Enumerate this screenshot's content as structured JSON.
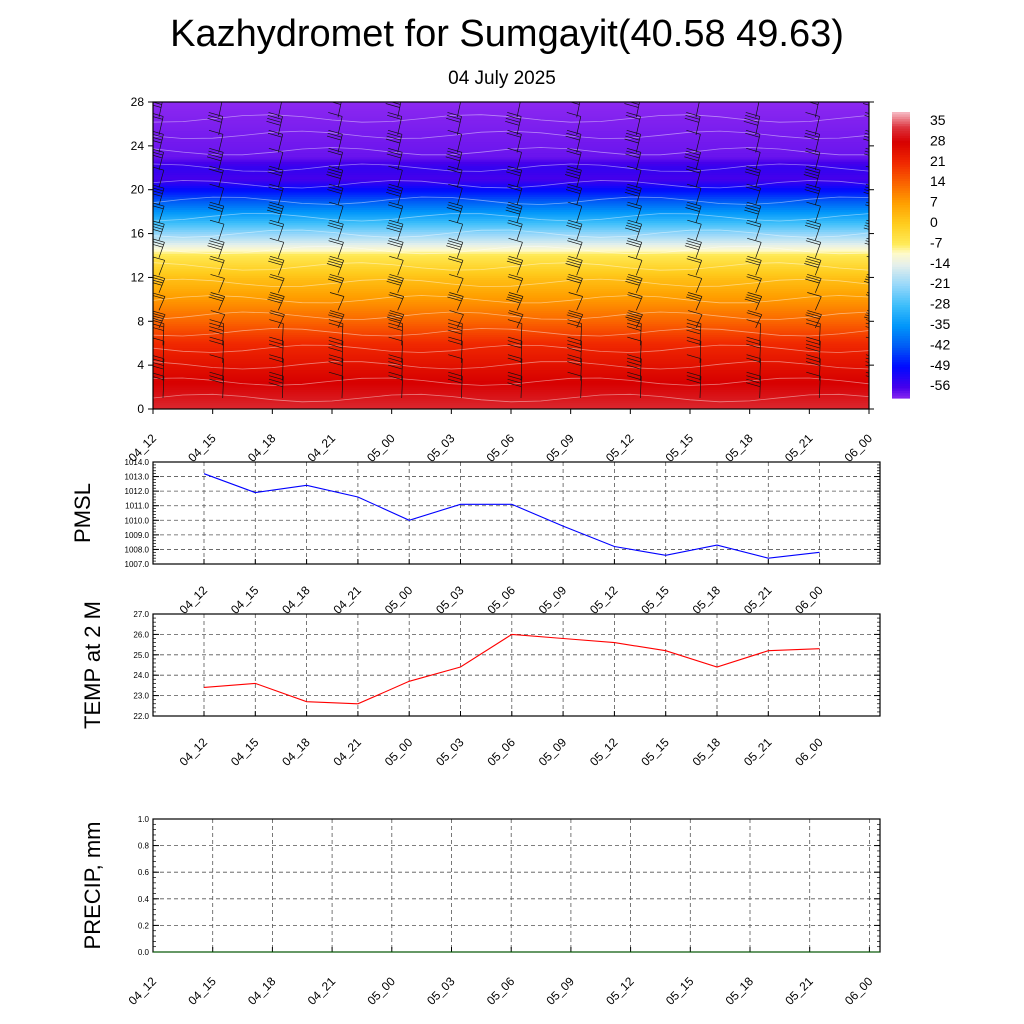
{
  "title": "Kazhydromet for Sumgayit(40.58 49.63)",
  "subtitle": "04 July 2025",
  "chart_data": [
    {
      "type": "heatmap",
      "ylim": [
        0,
        28
      ],
      "yticks": [
        "0",
        "4",
        "8",
        "12",
        "16",
        "20",
        "24",
        "28"
      ],
      "x": [
        "04_12",
        "04_15",
        "04_18",
        "04_21",
        "05_00",
        "05_03",
        "05_06",
        "05_09",
        "05_12",
        "05_15",
        "05_18",
        "05_21",
        "06_00"
      ],
      "colorbar": {
        "labels": [
          "35",
          "28",
          "21",
          "14",
          "7",
          "0",
          "-7",
          "-14",
          "-21",
          "-28",
          "-35",
          "-42",
          "-49",
          "-56"
        ],
        "range": [
          -60,
          38
        ]
      },
      "profile": [
        {
          "level": 0,
          "value": 32
        },
        {
          "level": 3,
          "value": 27
        },
        {
          "level": 6,
          "value": 21
        },
        {
          "level": 8,
          "value": 14
        },
        {
          "level": 10,
          "value": 8
        },
        {
          "level": 12,
          "value": 2
        },
        {
          "level": 14,
          "value": -6
        },
        {
          "level": 15,
          "value": -14
        },
        {
          "level": 17,
          "value": -28
        },
        {
          "level": 19,
          "value": -42
        },
        {
          "level": 21,
          "value": -56
        },
        {
          "level": 22,
          "value": -54
        },
        {
          "level": 23,
          "value": -58
        },
        {
          "level": 28,
          "value": -60
        }
      ],
      "wind_barbs": true
    },
    {
      "type": "line",
      "ylabel": "PMSL",
      "ylim": [
        1007.0,
        1014.0
      ],
      "yticks": [
        "1007.0",
        "1008.0",
        "1009.0",
        "1010.0",
        "1011.0",
        "1012.0",
        "1013.0",
        "1014.0"
      ],
      "x": [
        "04_12",
        "04_15",
        "04_18",
        "04_21",
        "05_00",
        "05_03",
        "05_06",
        "05_09",
        "05_12",
        "05_15",
        "05_18",
        "05_21",
        "06_00"
      ],
      "series": [
        {
          "values": [
            1013.2,
            1011.9,
            1012.4,
            1011.6,
            1010.0,
            1011.1,
            1011.1,
            1009.6,
            1008.2,
            1007.6,
            1008.3,
            1007.4,
            1007.8
          ],
          "color": "#0000ff"
        }
      ],
      "grid": true
    },
    {
      "type": "line",
      "ylabel": "TEMP at 2 M",
      "ylim": [
        22.0,
        27.0
      ],
      "yticks": [
        "22.0",
        "23.0",
        "24.0",
        "25.0",
        "26.0",
        "27.0"
      ],
      "x": [
        "04_12",
        "04_15",
        "04_18",
        "04_21",
        "05_00",
        "05_03",
        "05_06",
        "05_09",
        "05_12",
        "05_15",
        "05_18",
        "05_21",
        "06_00"
      ],
      "series": [
        {
          "values": [
            23.4,
            23.6,
            22.7,
            22.6,
            23.7,
            24.4,
            26.0,
            25.8,
            25.6,
            25.2,
            24.4,
            25.2,
            25.3
          ],
          "color": "#ff0000"
        }
      ],
      "grid": true
    },
    {
      "type": "line",
      "ylabel": "PRECIP, mm",
      "ylim": [
        0.0,
        1.0
      ],
      "yticks": [
        "0.0",
        "0.2",
        "0.4",
        "0.6",
        "0.8",
        "1.0"
      ],
      "x": [
        "04_12",
        "04_15",
        "04_18",
        "04_21",
        "05_00",
        "05_03",
        "05_06",
        "05_09",
        "05_12",
        "05_15",
        "05_18",
        "05_21",
        "06_00"
      ],
      "series": [
        {
          "values": [
            0,
            0,
            0,
            0,
            0,
            0,
            0,
            0,
            0,
            0,
            0,
            0,
            0
          ],
          "color": "#006400"
        }
      ],
      "grid": true
    }
  ]
}
